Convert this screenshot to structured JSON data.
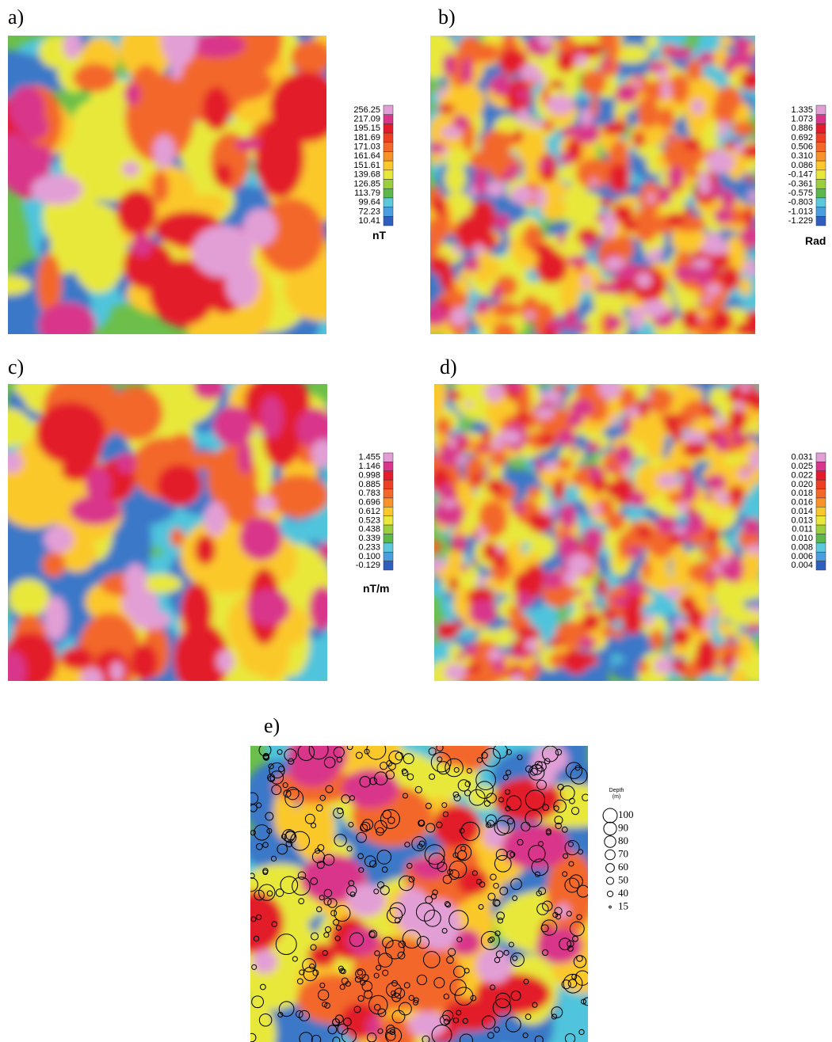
{
  "panels": [
    {
      "label": "a)",
      "colorbar": {
        "ticks": [
          "256.25",
          "217.09",
          "195.15",
          "181.69",
          "171.03",
          "161.64",
          "151.61",
          "139.68",
          "126.85",
          "113.79",
          "99.64",
          "72.23",
          "10.41"
        ],
        "unit": "nT"
      }
    },
    {
      "label": "b)",
      "colorbar": {
        "ticks": [
          "1.335",
          "1.073",
          "0.886",
          "0.692",
          "0.506",
          "0.310",
          "0.086",
          "-0.147",
          "-0.361",
          "-0.575",
          "-0.803",
          "-1.013",
          "-1.229"
        ],
        "unit": "Rad"
      }
    },
    {
      "label": "c)",
      "colorbar": {
        "ticks": [
          "1.455",
          "1.146",
          "0.998",
          "0.885",
          "0.783",
          "0.696",
          "0.612",
          "0.523",
          "0.438",
          "0.339",
          "0.233",
          "0.100",
          "-0.129"
        ],
        "unit": "nT/m"
      }
    },
    {
      "label": "d)",
      "colorbar": {
        "ticks": [
          "0.031",
          "0.025",
          "0.022",
          "0.020",
          "0.018",
          "0.016",
          "0.014",
          "0.013",
          "0.011",
          "0.010",
          "0.008",
          "0.006",
          "0.004"
        ]
      }
    },
    {
      "label": "e)",
      "depth_legend": {
        "title": "Depth",
        "unit": "(m)",
        "values": [
          100,
          90,
          80,
          70,
          60,
          50,
          40,
          15
        ]
      }
    }
  ]
}
